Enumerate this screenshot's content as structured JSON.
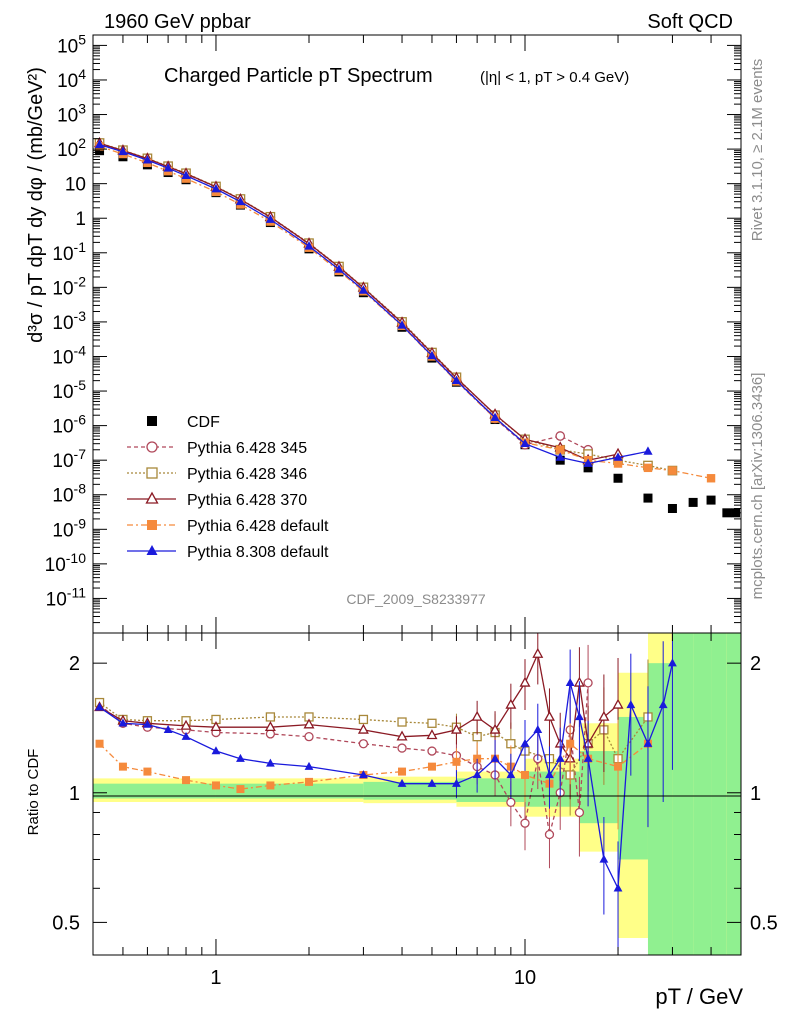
{
  "header": {
    "left": "1960 GeV ppbar",
    "right": "Soft QCD"
  },
  "side_texts": {
    "rivet": "Rivet 3.1.10, ≥ 2.1M events",
    "source": "mcplots.cern.ch [arXiv:1306.3436]"
  },
  "analysis_id": "CDF_2009_S8233977",
  "chart_data": [
    {
      "type": "scatter",
      "title": "Charged Particle pT Spectrum",
      "title_note": "(|η| < 1, pT > 0.4 GeV)",
      "ylabel": "d³σ / pT dpT dy dφ / (mb/GeV²)",
      "xlabel": "pT / GeV",
      "xscale": "log",
      "yscale": "log",
      "xlim": [
        0.4,
        50
      ],
      "ylim": [
        1e-12,
        200000.0
      ],
      "x_ticks": [
        "1",
        "10"
      ],
      "y_ticks": [
        "10^5",
        "10^4",
        "10^3",
        "10^2",
        "10",
        "1",
        "10^-1",
        "10^-2",
        "10^-3",
        "10^-4",
        "10^-5",
        "10^-6",
        "10^-7",
        "10^-8",
        "10^-9",
        "10^-10",
        "10^-11"
      ],
      "legend_position": "bottom-left",
      "series": [
        {
          "name": "CDF",
          "color": "#000000",
          "marker": "filled-square",
          "x": [
            0.42,
            0.5,
            0.6,
            0.7,
            0.8,
            1.0,
            1.2,
            1.5,
            2,
            2.5,
            3,
            4,
            5,
            6,
            8,
            10,
            13,
            16,
            20,
            25,
            30,
            35,
            40,
            45,
            48
          ],
          "y": [
            90,
            60,
            35,
            21,
            13,
            5.5,
            2.4,
            0.75,
            0.13,
            0.028,
            0.007,
            0.0007,
            9e-05,
            1.8e-05,
            1.5e-06,
            2.8e-07,
            1e-07,
            6e-08,
            3e-08,
            8e-09,
            4e-09,
            6e-09,
            7e-09,
            3e-09,
            3e-09
          ]
        },
        {
          "name": "Pythia 6.428 345",
          "color": "#b0485a",
          "marker": "open-circle",
          "dash": "4,3",
          "x": [
            0.42,
            0.5,
            0.6,
            0.7,
            0.8,
            1.0,
            1.2,
            1.5,
            2,
            2.5,
            3,
            4,
            5,
            6,
            8,
            10,
            13,
            16
          ],
          "y": [
            145,
            90,
            52,
            31,
            19,
            8,
            3.5,
            1.05,
            0.18,
            0.038,
            0.0095,
            0.0009,
            0.00012,
            2.2e-05,
            1.6e-06,
            2.8e-07,
            5e-07,
            2e-07
          ]
        },
        {
          "name": "Pythia 6.428 346",
          "color": "#a8883a",
          "marker": "open-square",
          "dash": "2,2",
          "x": [
            0.42,
            0.5,
            0.6,
            0.7,
            0.8,
            1.0,
            1.2,
            1.5,
            2,
            2.5,
            3,
            4,
            5,
            6,
            8,
            10,
            13,
            16,
            20,
            25,
            30
          ],
          "y": [
            150,
            93,
            54,
            32,
            20,
            8.3,
            3.6,
            1.1,
            0.19,
            0.04,
            0.01,
            0.001,
            0.00013,
            2.5e-05,
            2e-06,
            4e-07,
            2e-07,
            1.5e-07,
            1e-07,
            7e-08,
            5e-08
          ]
        },
        {
          "name": "Pythia 6.428 370",
          "color": "#8b1a24",
          "marker": "open-triangle",
          "dash": "",
          "x": [
            0.42,
            0.5,
            0.6,
            0.7,
            0.8,
            1.0,
            1.2,
            1.5,
            2,
            2.5,
            3,
            4,
            5,
            6,
            8,
            10,
            13,
            16,
            20
          ],
          "y": [
            148,
            91,
            53,
            31,
            19.5,
            8.1,
            3.5,
            1.08,
            0.185,
            0.039,
            0.0098,
            0.00095,
            0.000125,
            2.4e-05,
            2.1e-06,
            4e-07,
            2.3e-07,
            1e-07,
            1.5e-07
          ]
        },
        {
          "name": "Pythia 6.428 default",
          "color": "#f58a3c",
          "marker": "filled-square",
          "dash": "6,3,2,3",
          "x": [
            0.42,
            0.5,
            0.6,
            0.7,
            0.8,
            1.0,
            1.2,
            1.5,
            2,
            2.5,
            3,
            4,
            5,
            6,
            8,
            10,
            13,
            16,
            20,
            25,
            30,
            40
          ],
          "y": [
            120,
            72,
            40,
            23,
            14,
            5.8,
            2.5,
            0.8,
            0.14,
            0.03,
            0.0077,
            0.00077,
            0.0001,
            1.9e-05,
            1.6e-06,
            3.2e-07,
            2e-07,
            1e-07,
            8e-08,
            6e-08,
            5e-08,
            3e-08
          ]
        },
        {
          "name": "Pythia 8.308 default",
          "color": "#1a1adc",
          "marker": "filled-triangle",
          "dash": "",
          "x": [
            0.42,
            0.5,
            0.6,
            0.7,
            0.8,
            1.0,
            1.2,
            1.5,
            2,
            2.5,
            3,
            4,
            5,
            6,
            8,
            10,
            13,
            16,
            20,
            25
          ],
          "y": [
            135,
            84,
            48,
            28,
            17,
            7,
            3.0,
            0.92,
            0.155,
            0.033,
            0.0082,
            0.0008,
            0.000105,
            2e-05,
            1.7e-06,
            3e-07,
            1.2e-07,
            8e-08,
            1.2e-07,
            1.8e-07
          ]
        }
      ]
    },
    {
      "type": "scatter",
      "ylabel": "Ratio to CDF",
      "xscale": "log",
      "yscale": "log",
      "xlim": [
        0.4,
        50
      ],
      "ylim": [
        0.42,
        2.35
      ],
      "y_ticks": [
        "2",
        "1",
        "0.5"
      ],
      "reference_line": 1,
      "band_inner_color": "#90f090",
      "band_outer_color": "#ffff88",
      "series": [
        {
          "name": "Pythia 6.428 345",
          "color": "#b0485a",
          "x": [
            0.42,
            0.5,
            0.6,
            0.8,
            1.0,
            1.5,
            2,
            3,
            4,
            5,
            6,
            7,
            8,
            9,
            10,
            11,
            12,
            13,
            14,
            15,
            16
          ],
          "y": [
            1.6,
            1.45,
            1.42,
            1.4,
            1.38,
            1.37,
            1.35,
            1.3,
            1.27,
            1.25,
            1.22,
            1.15,
            1.1,
            0.95,
            0.85,
            1.2,
            0.8,
            1.0,
            1.4,
            0.9,
            1.8
          ]
        },
        {
          "name": "Pythia 6.428 346",
          "color": "#a8883a",
          "x": [
            0.42,
            0.5,
            0.6,
            0.8,
            1.0,
            1.5,
            2,
            3,
            4,
            5,
            6,
            7,
            8,
            9,
            10,
            12,
            14,
            16,
            18,
            20,
            25
          ],
          "y": [
            1.62,
            1.48,
            1.47,
            1.47,
            1.48,
            1.5,
            1.5,
            1.48,
            1.46,
            1.45,
            1.42,
            1.35,
            1.38,
            1.3,
            1.25,
            1.2,
            1.1,
            1.3,
            1.4,
            1.2,
            1.5
          ]
        },
        {
          "name": "Pythia 6.428 370",
          "color": "#8b1a24",
          "x": [
            0.42,
            0.5,
            0.6,
            0.8,
            1.0,
            1.5,
            2,
            3,
            4,
            5,
            6,
            7,
            8,
            9,
            10,
            11,
            12,
            13,
            14,
            15,
            16,
            18,
            20
          ],
          "y": [
            1.58,
            1.47,
            1.45,
            1.43,
            1.42,
            1.42,
            1.44,
            1.4,
            1.35,
            1.36,
            1.4,
            1.5,
            1.4,
            1.6,
            1.8,
            2.1,
            1.5,
            1.3,
            1.2,
            1.8,
            1.3,
            1.5,
            1.6
          ]
        },
        {
          "name": "Pythia 6.428 default",
          "color": "#f58a3c",
          "x": [
            0.42,
            0.5,
            0.6,
            0.8,
            1.0,
            1.2,
            1.5,
            2,
            3,
            4,
            5,
            6,
            7,
            8,
            9,
            10,
            12,
            14,
            16,
            20,
            25
          ],
          "y": [
            1.3,
            1.15,
            1.12,
            1.07,
            1.04,
            1.02,
            1.04,
            1.06,
            1.1,
            1.12,
            1.15,
            1.18,
            1.2,
            1.2,
            1.15,
            1.1,
            1.05,
            1.3,
            1.2,
            1.15,
            1.3
          ]
        },
        {
          "name": "Pythia 8.308 default",
          "color": "#1a1adc",
          "x": [
            0.42,
            0.5,
            0.6,
            0.7,
            0.8,
            1.0,
            1.2,
            1.5,
            2,
            3,
            4,
            5,
            6,
            7,
            8,
            9,
            10,
            11,
            12,
            13,
            14,
            15,
            16,
            18,
            20,
            22,
            25,
            28,
            30
          ],
          "y": [
            1.58,
            1.45,
            1.44,
            1.4,
            1.35,
            1.25,
            1.2,
            1.17,
            1.15,
            1.1,
            1.05,
            1.05,
            1.05,
            1.1,
            1.2,
            1.1,
            1.3,
            1.4,
            1.1,
            1.2,
            1.8,
            1.5,
            1.2,
            0.7,
            0.6,
            1.6,
            1.3,
            1.6,
            2.0
          ]
        }
      ]
    }
  ]
}
